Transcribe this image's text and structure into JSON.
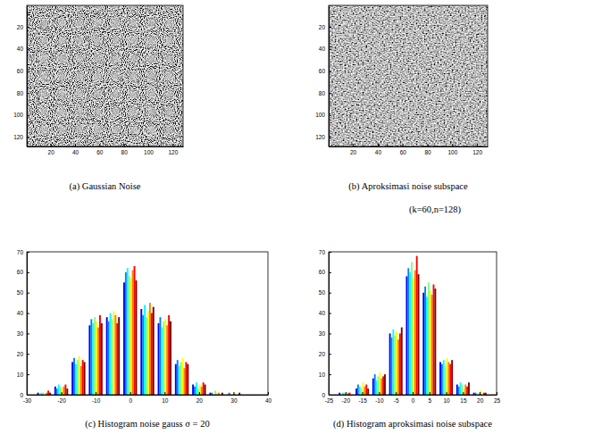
{
  "chart_data": [
    {
      "type": "image",
      "title": "(a) Gaussian Noise",
      "xlim": [
        0.5,
        128.5
      ],
      "ylim": [
        0.5,
        128.5
      ],
      "xticks": [
        20,
        40,
        60,
        80,
        100,
        120
      ],
      "yticks": [
        20,
        40,
        60,
        80,
        100,
        120
      ]
    },
    {
      "type": "image",
      "title": "(b) Aproksimasi noise subspace",
      "subtitle": "(k=60,n=128)",
      "xlim": [
        0.5,
        128.5
      ],
      "ylim": [
        0.5,
        128.5
      ],
      "xticks": [
        20,
        40,
        60,
        80,
        100,
        120
      ],
      "yticks": [
        20,
        40,
        60,
        80,
        100,
        120
      ]
    },
    {
      "type": "bar",
      "title": "(c) Histogram noise gauss σ = 20",
      "x": [
        -25,
        -20,
        -15,
        -10,
        -5,
        0,
        5,
        10,
        15,
        20,
        25,
        30
      ],
      "series": [
        {
          "color": "#0000ff",
          "values": [
            1,
            4,
            16,
            34,
            38,
            55,
            42,
            35,
            15,
            5,
            1,
            0
          ]
        },
        {
          "color": "#0080ff",
          "values": [
            0,
            3,
            18,
            37,
            36,
            60,
            39,
            38,
            17,
            4,
            1,
            1
          ]
        },
        {
          "color": "#00ffff",
          "values": [
            1,
            5,
            15,
            35,
            40,
            62,
            44,
            33,
            14,
            6,
            0,
            0
          ]
        },
        {
          "color": "#80ff80",
          "values": [
            1,
            4,
            17,
            38,
            37,
            58,
            38,
            36,
            16,
            3,
            2,
            0
          ]
        },
        {
          "color": "#ffff00",
          "values": [
            0,
            3,
            19,
            36,
            41,
            57,
            41,
            37,
            18,
            5,
            1,
            1
          ]
        },
        {
          "color": "#ff8000",
          "values": [
            1,
            4,
            14,
            33,
            39,
            61,
            45,
            34,
            13,
            4,
            1,
            0
          ]
        },
        {
          "color": "#ff0000",
          "values": [
            2,
            5,
            17,
            39,
            35,
            63,
            40,
            39,
            16,
            6,
            0,
            0
          ]
        },
        {
          "color": "#800000",
          "values": [
            1,
            3,
            16,
            35,
            38,
            56,
            43,
            36,
            15,
            5,
            1,
            1
          ]
        }
      ],
      "xlim": [
        -30,
        40
      ],
      "ylim": [
        0,
        70
      ],
      "xticks": [
        -30,
        -20,
        -10,
        0,
        10,
        20,
        30,
        40
      ],
      "yticks": [
        0,
        10,
        20,
        30,
        40,
        50,
        60,
        70
      ]
    },
    {
      "type": "bar",
      "title": "(d) Histogram aproksimasi noise subspace",
      "x": [
        -20,
        -15,
        -10,
        -5,
        0,
        5,
        10,
        15,
        20
      ],
      "series": [
        {
          "color": "#0000ff",
          "values": [
            1,
            3,
            8,
            30,
            58,
            50,
            16,
            5,
            1
          ]
        },
        {
          "color": "#0080ff",
          "values": [
            0,
            5,
            10,
            28,
            62,
            53,
            15,
            4,
            1
          ]
        },
        {
          "color": "#00ffff",
          "values": [
            1,
            4,
            7,
            32,
            60,
            48,
            17,
            6,
            0
          ]
        },
        {
          "color": "#80ff80",
          "values": [
            1,
            3,
            9,
            29,
            65,
            55,
            14,
            5,
            1
          ]
        },
        {
          "color": "#ffff00",
          "values": [
            0,
            6,
            11,
            31,
            57,
            51,
            18,
            3,
            2
          ]
        },
        {
          "color": "#ff8000",
          "values": [
            1,
            4,
            8,
            27,
            61,
            49,
            16,
            5,
            0
          ]
        },
        {
          "color": "#ff0000",
          "values": [
            1,
            5,
            9,
            30,
            68,
            54,
            15,
            4,
            1
          ]
        },
        {
          "color": "#800000",
          "values": [
            0,
            3,
            10,
            33,
            59,
            52,
            17,
            6,
            1
          ]
        }
      ],
      "xlim": [
        -25,
        25
      ],
      "ylim": [
        0,
        70
      ],
      "xticks": [
        -25,
        -20,
        -15,
        -10,
        -5,
        0,
        5,
        10,
        15,
        20,
        25
      ],
      "yticks": [
        0,
        10,
        20,
        30,
        40,
        50,
        60,
        70
      ]
    }
  ]
}
